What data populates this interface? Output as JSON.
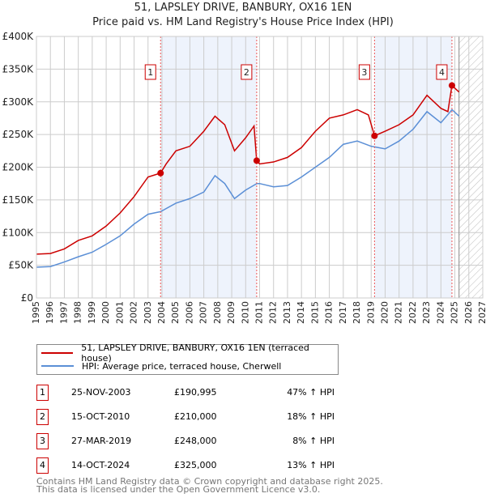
{
  "title": "51, LAPSLEY DRIVE, BANBURY, OX16 1EN",
  "subtitle": "Price paid vs. HM Land Registry's House Price Index (HPI)",
  "colors": {
    "property": "#cc0000",
    "hpi": "#5b8fd6",
    "shade": "#eef3fc"
  },
  "chart_data": {
    "type": "line",
    "xlim": [
      1995,
      2027
    ],
    "ylim": [
      0,
      400000
    ],
    "yticks": [
      {
        "v": 0,
        "l": "£0"
      },
      {
        "v": 50000,
        "l": "£50K"
      },
      {
        "v": 100000,
        "l": "£100K"
      },
      {
        "v": 150000,
        "l": "£150K"
      },
      {
        "v": 200000,
        "l": "£200K"
      },
      {
        "v": 250000,
        "l": "£250K"
      },
      {
        "v": 300000,
        "l": "£300K"
      },
      {
        "v": 350000,
        "l": "£350K"
      },
      {
        "v": 400000,
        "l": "£400K"
      }
    ],
    "xticks": [
      "1995",
      "1996",
      "1997",
      "1998",
      "1999",
      "2000",
      "2001",
      "2002",
      "2003",
      "2004",
      "2005",
      "2006",
      "2007",
      "2008",
      "2009",
      "2010",
      "2011",
      "2012",
      "2013",
      "2014",
      "2015",
      "2016",
      "2017",
      "2018",
      "2019",
      "2020",
      "2021",
      "2022",
      "2023",
      "2024",
      "2025",
      "2026",
      "2027"
    ],
    "shaded_ranges": [
      [
        2003.9,
        2010.79
      ],
      [
        2019.24,
        2024.79
      ]
    ],
    "forecast_from": 2025.3,
    "series": [
      {
        "name": "51, LAPSLEY DRIVE, BANBURY, OX16 1EN (terraced house)",
        "x": [
          1995,
          1996,
          1997,
          1998,
          1999,
          2000,
          2001,
          2002,
          2003,
          2003.9,
          2004.3,
          2005,
          2006,
          2007,
          2007.8,
          2008.5,
          2009.2,
          2010,
          2010.6,
          2010.79,
          2011,
          2012,
          2013,
          2014,
          2015,
          2016,
          2017,
          2018,
          2018.8,
          2019.24,
          2020,
          2021,
          2022,
          2023,
          2024,
          2024.5,
          2024.79,
          2025.3
        ],
        "y": [
          67000,
          68000,
          75000,
          88000,
          95000,
          110000,
          130000,
          155000,
          185000,
          190995,
          205000,
          225000,
          232000,
          255000,
          278000,
          265000,
          225000,
          245000,
          263000,
          210000,
          205000,
          208000,
          215000,
          230000,
          255000,
          275000,
          280000,
          288000,
          280000,
          248000,
          255000,
          265000,
          280000,
          310000,
          290000,
          285000,
          325000,
          315000
        ]
      },
      {
        "name": "HPI: Average price, terraced house, Cherwell",
        "x": [
          1995,
          1996,
          1997,
          1998,
          1999,
          2000,
          2001,
          2002,
          2003,
          2003.9,
          2005,
          2006,
          2007,
          2007.8,
          2008.5,
          2009.2,
          2010,
          2010.8,
          2011,
          2012,
          2013,
          2014,
          2015,
          2016,
          2017,
          2018,
          2019,
          2020,
          2021,
          2022,
          2023,
          2024,
          2024.8,
          2025.3
        ],
        "y": [
          47000,
          48000,
          55000,
          63000,
          70000,
          82000,
          95000,
          113000,
          128000,
          132000,
          145000,
          152000,
          162000,
          187000,
          175000,
          152000,
          165000,
          175000,
          175000,
          170000,
          172000,
          185000,
          200000,
          215000,
          235000,
          240000,
          232000,
          228000,
          240000,
          258000,
          285000,
          268000,
          288000,
          278000
        ]
      }
    ],
    "sales": [
      {
        "id": "1",
        "date": "25-NOV-2003",
        "x": 2003.9,
        "price": "£190,995",
        "value": 190995,
        "hpi": "47% ↑ HPI"
      },
      {
        "id": "2",
        "date": "15-OCT-2010",
        "x": 2010.79,
        "price": "£210,000",
        "value": 210000,
        "hpi": "18% ↑ HPI"
      },
      {
        "id": "3",
        "date": "27-MAR-2019",
        "x": 2019.24,
        "price": "£248,000",
        "value": 248000,
        "hpi": "8% ↑ HPI"
      },
      {
        "id": "4",
        "date": "14-OCT-2024",
        "x": 2024.79,
        "price": "£325,000",
        "value": 325000,
        "hpi": "13% ↑ HPI"
      }
    ]
  },
  "legend": {
    "property": "51, LAPSLEY DRIVE, BANBURY, OX16 1EN (terraced house)",
    "hpi": "HPI: Average price, terraced house, Cherwell"
  },
  "footer": {
    "line1": "Contains HM Land Registry data © Crown copyright and database right 2025.",
    "line2": "This data is licensed under the Open Government Licence v3.0."
  }
}
